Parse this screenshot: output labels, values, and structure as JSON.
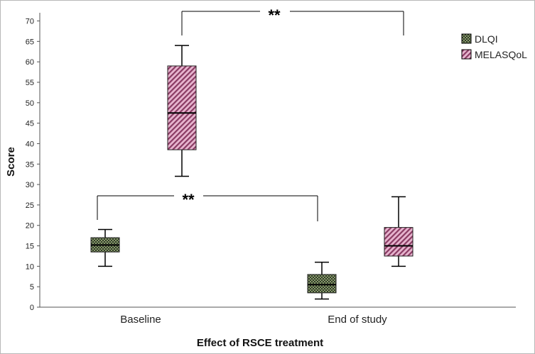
{
  "chart_data": {
    "type": "boxplot",
    "title": "",
    "xlabel": "Effect of RSCE treatment",
    "ylabel": "Score",
    "ylim": [
      0,
      72
    ],
    "yticks": [
      0,
      5,
      10,
      15,
      20,
      25,
      30,
      35,
      40,
      45,
      50,
      55,
      60,
      65,
      70
    ],
    "categories": [
      "Baseline",
      "End of study"
    ],
    "grid": false,
    "legend_position": "top-right",
    "series": [
      {
        "name": "DLQI",
        "pattern": "checkered",
        "colors": [
          "#2f3b2a",
          "#8a9a6a"
        ],
        "boxes": [
          {
            "category": "Baseline",
            "whisker_low": 10,
            "q1": 13.5,
            "median": 15.2,
            "q3": 17,
            "whisker_high": 19
          },
          {
            "category": "End of study",
            "whisker_low": 2,
            "q1": 3.5,
            "median": 5.5,
            "q3": 8,
            "whisker_high": 11
          }
        ]
      },
      {
        "name": "MELASQoL",
        "pattern": "diagonal-stripes",
        "colors": [
          "#8a3b63",
          "#e7b5cf"
        ],
        "boxes": [
          {
            "category": "Baseline",
            "whisker_low": 32,
            "q1": 38.5,
            "median": 47.5,
            "q3": 59,
            "whisker_high": 64
          },
          {
            "category": "End of study",
            "whisker_low": 10,
            "q1": 12.5,
            "median": 15,
            "q3": 19.5,
            "whisker_high": 27
          }
        ]
      }
    ],
    "annotations": [
      {
        "label": "**",
        "from": "MELASQoL Baseline",
        "to": "MELASQoL End of study",
        "level": 72
      },
      {
        "label": "**",
        "from": "DLQI Baseline",
        "to": "DLQI End of study",
        "level": 27.5
      }
    ]
  }
}
